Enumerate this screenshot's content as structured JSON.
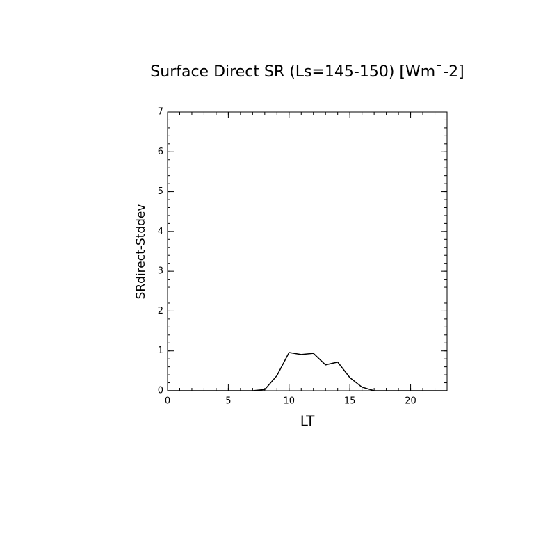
{
  "chart_data": {
    "type": "line",
    "title": "Surface Direct SR (Ls=145-150) [Wm¯-2]",
    "x_label": "LT",
    "y_label": "SRdirect-Stddev",
    "x": [
      0,
      1,
      2,
      3,
      4,
      5,
      6,
      7,
      8,
      9,
      10,
      11,
      12,
      13,
      14,
      15,
      16,
      17,
      18,
      19,
      20,
      21,
      22,
      23
    ],
    "series": [
      {
        "name": "SRdirect-Stddev",
        "color": "#000000",
        "values": [
          0,
          0,
          0,
          0,
          0,
          0,
          0,
          0,
          0.03,
          0.38,
          0.96,
          0.91,
          0.94,
          0.65,
          0.72,
          0.33,
          0.09,
          0,
          0,
          0,
          0,
          0,
          0,
          0
        ]
      }
    ],
    "xlim": [
      0,
      23
    ],
    "xticks": [
      0,
      5,
      10,
      15,
      20
    ],
    "ylim": [
      0,
      7
    ],
    "yticks": [
      0,
      1,
      2,
      3,
      4,
      5,
      6,
      7
    ]
  }
}
